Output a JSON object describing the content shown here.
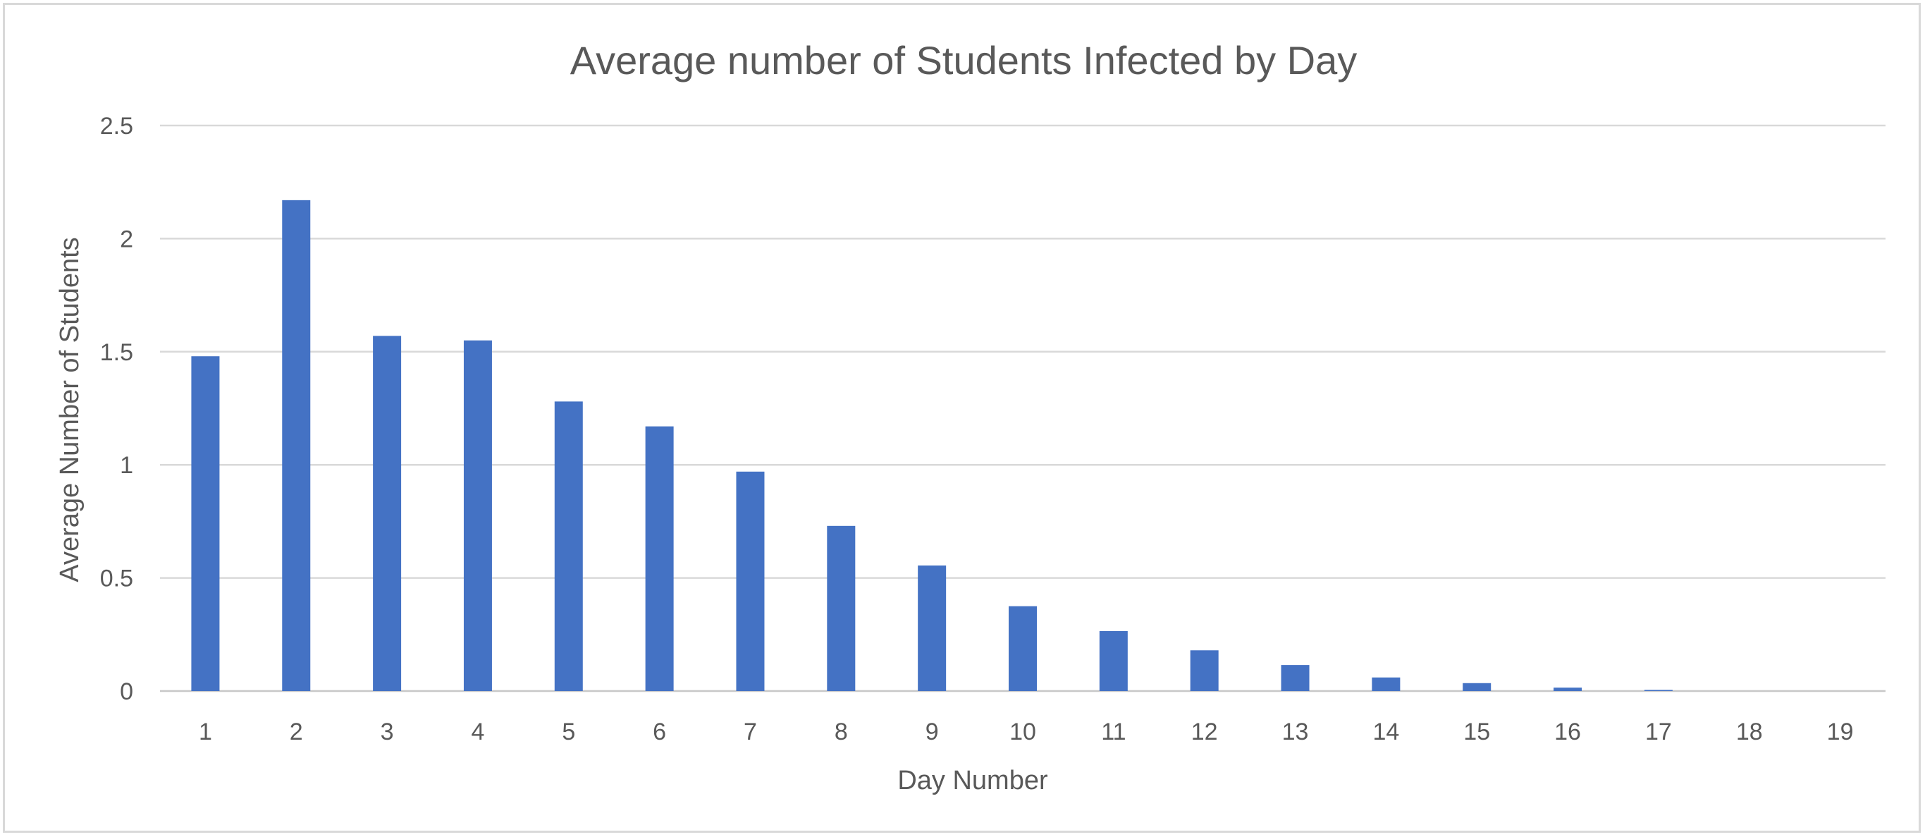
{
  "chart_data": {
    "type": "bar",
    "title": "Average number of Students Infected by Day",
    "xlabel": "Day Number",
    "ylabel": "Average Number of Students",
    "categories": [
      "1",
      "2",
      "3",
      "4",
      "5",
      "6",
      "7",
      "8",
      "9",
      "10",
      "11",
      "12",
      "13",
      "14",
      "15",
      "16",
      "17",
      "18",
      "19"
    ],
    "values": [
      1.48,
      2.17,
      1.57,
      1.55,
      1.28,
      1.17,
      0.97,
      0.73,
      0.555,
      0.375,
      0.265,
      0.18,
      0.115,
      0.06,
      0.035,
      0.015,
      0.005,
      0,
      0
    ],
    "ylim": [
      0,
      2.5
    ],
    "yticks": [
      "0",
      "0.5",
      "1",
      "1.5",
      "2",
      "2.5"
    ],
    "grid": true,
    "legend": "none",
    "bar_color": "#4472c4"
  }
}
